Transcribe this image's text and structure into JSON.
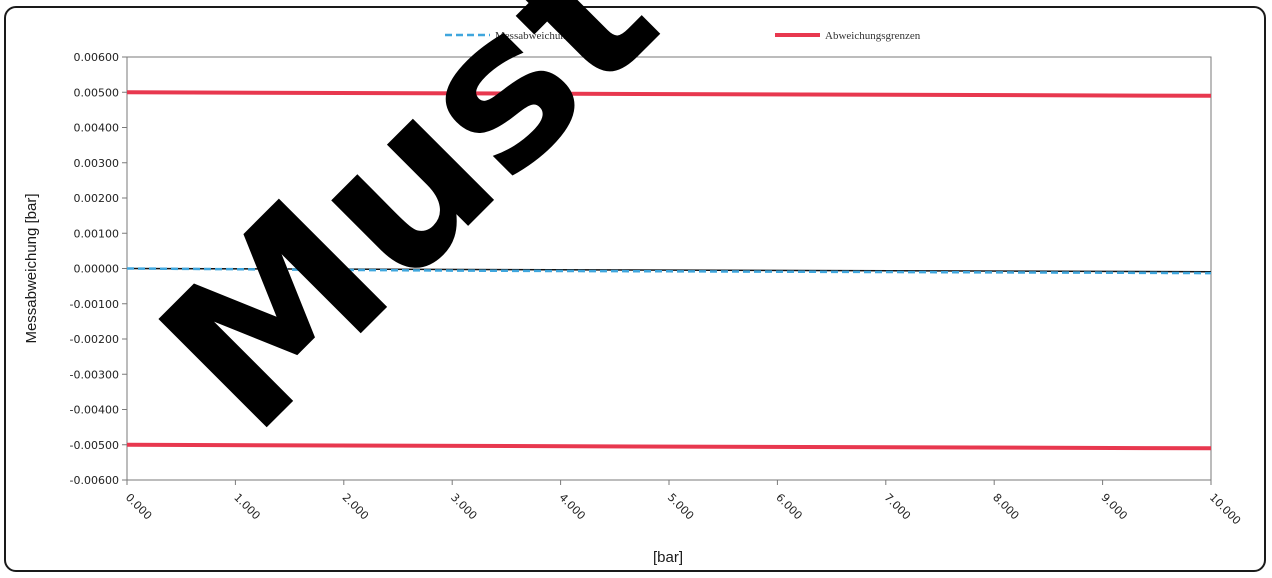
{
  "watermark": "Must",
  "chart_data": {
    "type": "line",
    "title": "",
    "xlabel": "[bar]",
    "ylabel": "Messabweichung [bar]",
    "xlim": [
      0,
      10
    ],
    "ylim": [
      -0.006,
      0.006
    ],
    "x_tick_labels": [
      "0.000",
      "1.000",
      "2.000",
      "3.000",
      "4.000",
      "5.000",
      "6.000",
      "7.000",
      "8.000",
      "9.000",
      "10.000"
    ],
    "x_ticks": [
      0,
      1,
      2,
      3,
      4,
      5,
      6,
      7,
      8,
      9,
      10
    ],
    "y_tick_labels": [
      "0.00600",
      "0.00500",
      "0.00400",
      "0.00300",
      "0.00200",
      "0.00100",
      "0.00000",
      "-0.00100",
      "-0.00200",
      "-0.00300",
      "-0.00400",
      "-0.00500",
      "-0.00600"
    ],
    "y_ticks": [
      0.006,
      0.005,
      0.004,
      0.003,
      0.002,
      0.001,
      0,
      -0.001,
      -0.002,
      -0.003,
      -0.004,
      -0.005,
      -0.006
    ],
    "grid": false,
    "legend_position": "top",
    "series": [
      {
        "name": "Messabweichung Δp",
        "style": "dashed",
        "color": "#3fa6dd",
        "x": [
          0,
          1,
          2,
          3,
          4,
          5,
          6,
          7,
          8,
          9,
          10
        ],
        "y": [
          0,
          -2e-05,
          -4e-05,
          -6e-05,
          -7e-05,
          -8e-05,
          -9e-05,
          -0.0001,
          -0.00011,
          -0.00012,
          -0.00013
        ]
      },
      {
        "name": "Abweichungsgrenzen",
        "style": "solid",
        "color": "#e8384f",
        "x": [
          0,
          10
        ],
        "y": [
          0.005,
          0.0049
        ]
      },
      {
        "name": "",
        "style": "solid",
        "color": "#e8384f",
        "x": [
          0,
          10
        ],
        "y": [
          -0.005,
          -0.0051
        ]
      },
      {
        "name": "",
        "style": "solid",
        "color": "#111111",
        "x": [
          0,
          10
        ],
        "y": [
          0,
          -9e-05
        ]
      }
    ]
  }
}
